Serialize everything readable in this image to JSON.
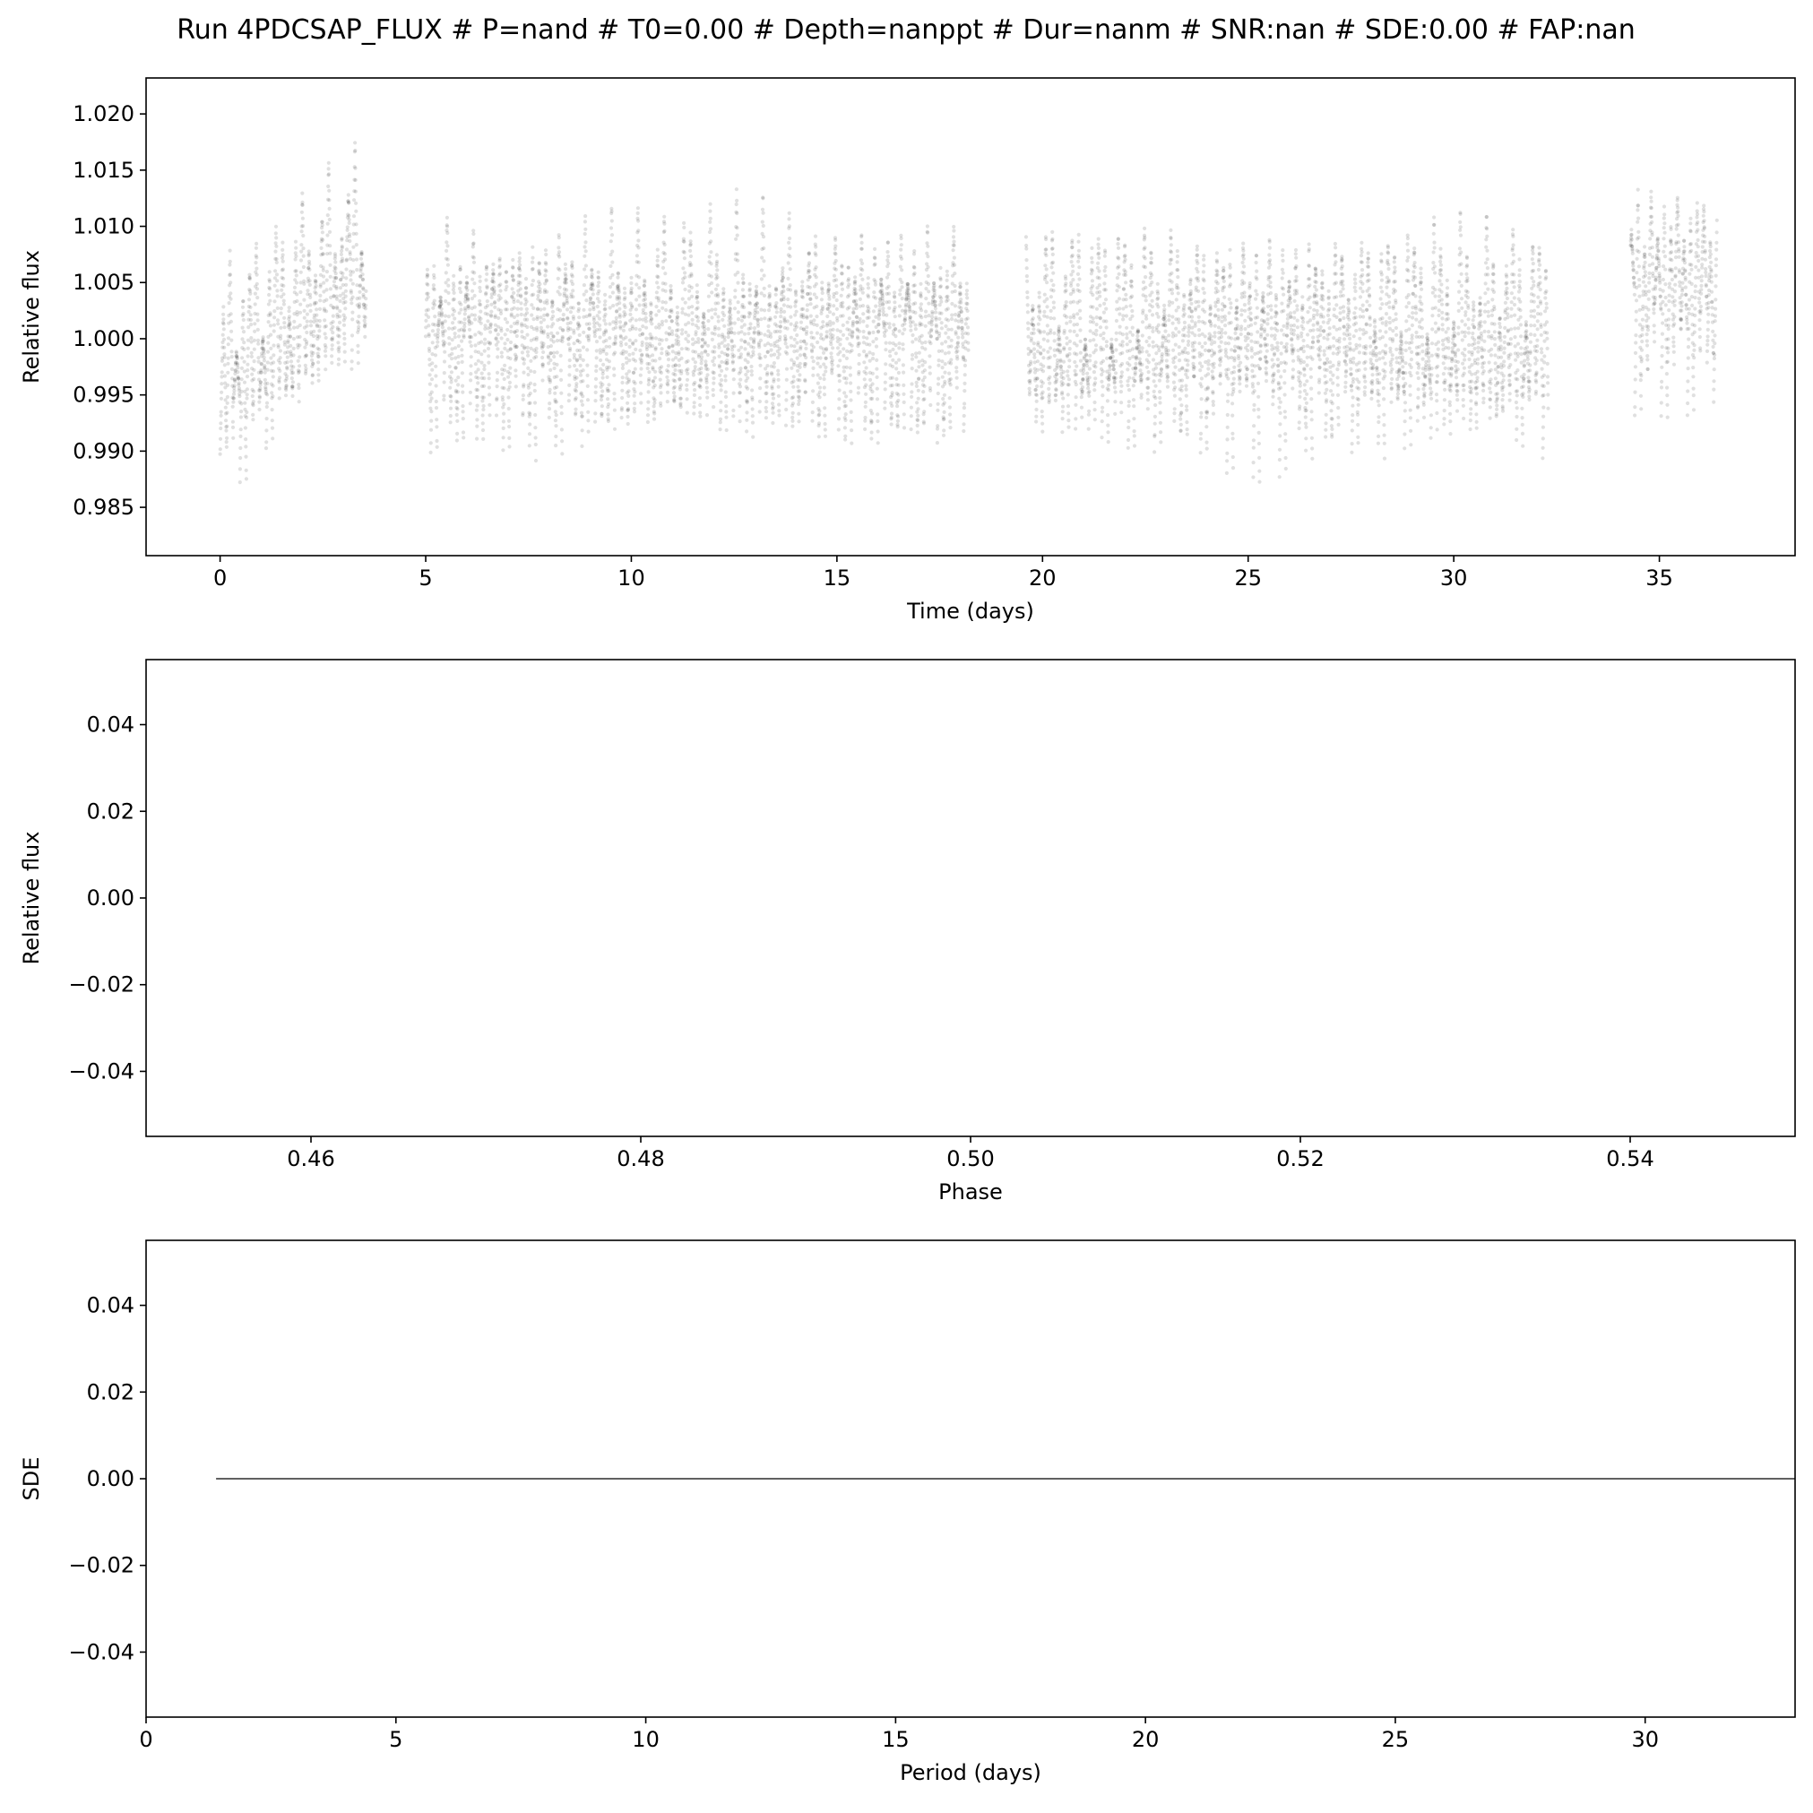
{
  "figure": {
    "suptitle": "Run 4PDCSAP_FLUX # P=nand # T0=0.00 # Depth=nanppt # Dur=nanm # SNR:nan # SDE:0.00 # FAP:nan"
  },
  "chart_data": [
    {
      "type": "scatter",
      "title": "",
      "xlabel": "Time (days)",
      "ylabel": "Relative flux",
      "xlim": [
        -1.8,
        38.3
      ],
      "ylim": [
        0.9807,
        1.0232
      ],
      "xticks": [
        0,
        5,
        10,
        15,
        20,
        25,
        30,
        35
      ],
      "xtick_labels": [
        "0",
        "5",
        "10",
        "15",
        "20",
        "25",
        "30",
        "35"
      ],
      "yticks": [
        0.985,
        0.99,
        0.995,
        1.0,
        1.005,
        1.01,
        1.015,
        1.02
      ],
      "ytick_labels": [
        "0.985",
        "0.990",
        "0.995",
        "1.000",
        "1.005",
        "1.010",
        "1.015",
        "1.020"
      ],
      "grid": false,
      "marker_color": "#000000",
      "marker_alpha": 0.12,
      "series": [
        {
          "segments": [
            {
              "t": [
                0.0,
                3.55
              ],
              "mean": 1.0015,
              "trend": [
                -0.0055,
                0.0055
              ]
            },
            {
              "t": [
                5.0,
                18.2
              ],
              "mean": 1.0005,
              "trend": [
                0.0,
                0.0
              ]
            },
            {
              "t": [
                19.6,
                32.3
              ],
              "mean": 1.0,
              "trend": [
                0.0,
                0.0
              ]
            },
            {
              "t": [
                34.3,
                36.4
              ],
              "mean": 1.0045,
              "trend": [
                0.0,
                0.0
              ]
            }
          ],
          "oscillation_period_days": 0.16,
          "oscillation_amplitude": 0.0085,
          "x_range": [
            0.0,
            36.4
          ],
          "y_range": [
            0.983,
            1.0212
          ]
        }
      ]
    },
    {
      "type": "scatter",
      "title": "",
      "xlabel": "Phase",
      "ylabel": "Relative flux",
      "xlim": [
        0.45,
        0.55
      ],
      "ylim": [
        -0.055,
        0.055
      ],
      "xticks": [
        0.46,
        0.48,
        0.5,
        0.52,
        0.54
      ],
      "xtick_labels": [
        "0.46",
        "0.48",
        "0.50",
        "0.52",
        "0.54"
      ],
      "yticks": [
        -0.04,
        -0.02,
        0.0,
        0.02,
        0.04
      ],
      "ytick_labels": [
        "−0.04",
        "−0.02",
        "0.00",
        "0.02",
        "0.04"
      ],
      "grid": false,
      "series": []
    },
    {
      "type": "line",
      "title": "",
      "xlabel": "Period (days)",
      "ylabel": "SDE",
      "xlim": [
        0,
        33
      ],
      "ylim": [
        -0.055,
        0.055
      ],
      "xticks": [
        0,
        5,
        10,
        15,
        20,
        25,
        30
      ],
      "xtick_labels": [
        "0",
        "5",
        "10",
        "15",
        "20",
        "25",
        "30"
      ],
      "yticks": [
        -0.04,
        -0.02,
        0.0,
        0.02,
        0.04
      ],
      "ytick_labels": [
        "−0.04",
        "−0.02",
        "0.00",
        "0.02",
        "0.04"
      ],
      "grid": false,
      "series": [
        {
          "x": [
            1.4,
            33.0
          ],
          "y": [
            0.0,
            0.0
          ],
          "color": "#000000"
        }
      ]
    }
  ]
}
